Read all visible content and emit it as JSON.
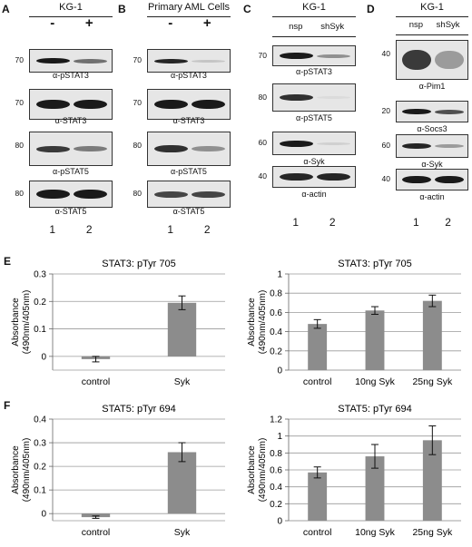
{
  "panels": {
    "A": {
      "letter": "A",
      "header": "KG-1",
      "lanes": [
        "-",
        "+"
      ],
      "mw": [
        "70",
        "70",
        "80",
        "80"
      ],
      "labels": [
        "α-pSTAT3",
        "α-STAT3",
        "α-pSTAT5",
        "α-STAT5"
      ],
      "numbers": [
        "1",
        "2"
      ]
    },
    "B": {
      "letter": "B",
      "header": "Primary AML Cells",
      "lanes": [
        "-",
        "+"
      ],
      "mw": [
        "70",
        "70",
        "80",
        "80"
      ],
      "labels": [
        "α-pSTAT3",
        "α-STAT3",
        "α-pSTAT5",
        "α-STAT5"
      ],
      "numbers": [
        "1",
        "2"
      ]
    },
    "C": {
      "letter": "C",
      "header": "KG-1",
      "lanes": [
        "nsp",
        "shSyk"
      ],
      "mw": [
        "70",
        "80",
        "60",
        "40"
      ],
      "labels": [
        "α-pSTAT3",
        "α-pSTAT5",
        "α-Syk",
        "α-actin"
      ],
      "numbers": [
        "1",
        "2"
      ]
    },
    "D": {
      "letter": "D",
      "header": "KG-1",
      "lanes": [
        "nsp",
        "shSyk"
      ],
      "mw": [
        "40",
        "20",
        "60",
        "40"
      ],
      "labels": [
        "α-Pim1",
        "α-Socs3",
        "α-Syk",
        "α-actin"
      ],
      "numbers": [
        "1",
        "2"
      ]
    },
    "E": {
      "letter": "E"
    },
    "F": {
      "letter": "F"
    }
  },
  "chart_data": [
    {
      "type": "bar",
      "title": "STAT3: pTyr 705",
      "ylabel": "Absorbance (490nm/405nm)",
      "categories": [
        "control",
        "Syk"
      ],
      "values": [
        -0.01,
        0.195
      ],
      "errors": [
        0.01,
        0.025
      ],
      "ylim": [
        -0.05,
        0.3
      ],
      "yticks": [
        0,
        0.1,
        0.2,
        0.3
      ],
      "ytick_labels": [
        "0",
        "0.1",
        "0.2",
        "0.3"
      ],
      "grid": true
    },
    {
      "type": "bar",
      "title": "STAT3: pTyr 705",
      "ylabel": "Absorbance (490nm/405nm)",
      "categories": [
        "control",
        "10ng Syk",
        "25ng Syk"
      ],
      "values": [
        0.48,
        0.62,
        0.72
      ],
      "errors": [
        0.045,
        0.04,
        0.06
      ],
      "ylim": [
        0,
        1
      ],
      "yticks": [
        0,
        0.2,
        0.4,
        0.6,
        0.8,
        1
      ],
      "ytick_labels": [
        "0",
        "0.2",
        "0.4",
        "0.6",
        "0.8",
        "1"
      ],
      "grid": true
    },
    {
      "type": "bar",
      "title": "STAT5: pTyr 694",
      "ylabel": "Absorbance (490nm/405nm)",
      "categories": [
        "control",
        "Syk"
      ],
      "values": [
        -0.015,
        0.26
      ],
      "errors": [
        0.005,
        0.04
      ],
      "ylim": [
        -0.03,
        0.4
      ],
      "yticks": [
        0,
        0.1,
        0.2,
        0.3,
        0.4
      ],
      "ytick_labels": [
        "0",
        "0.1",
        "0.2",
        "0.3",
        "0.4"
      ],
      "grid": true
    },
    {
      "type": "bar",
      "title": "STAT5: pTyr 694",
      "ylabel": "Absorbance (490nm/405nm)",
      "categories": [
        "control",
        "10ng Syk",
        "25ng Syk"
      ],
      "values": [
        0.57,
        0.76,
        0.95
      ],
      "errors": [
        0.065,
        0.14,
        0.17
      ],
      "ylim": [
        0,
        1.2
      ],
      "yticks": [
        0,
        0.2,
        0.4,
        0.6,
        0.8,
        1,
        1.2
      ],
      "ytick_labels": [
        "0",
        "0.2",
        "0.4",
        "0.6",
        "0.8",
        "1",
        "1.2"
      ],
      "grid": true
    }
  ]
}
